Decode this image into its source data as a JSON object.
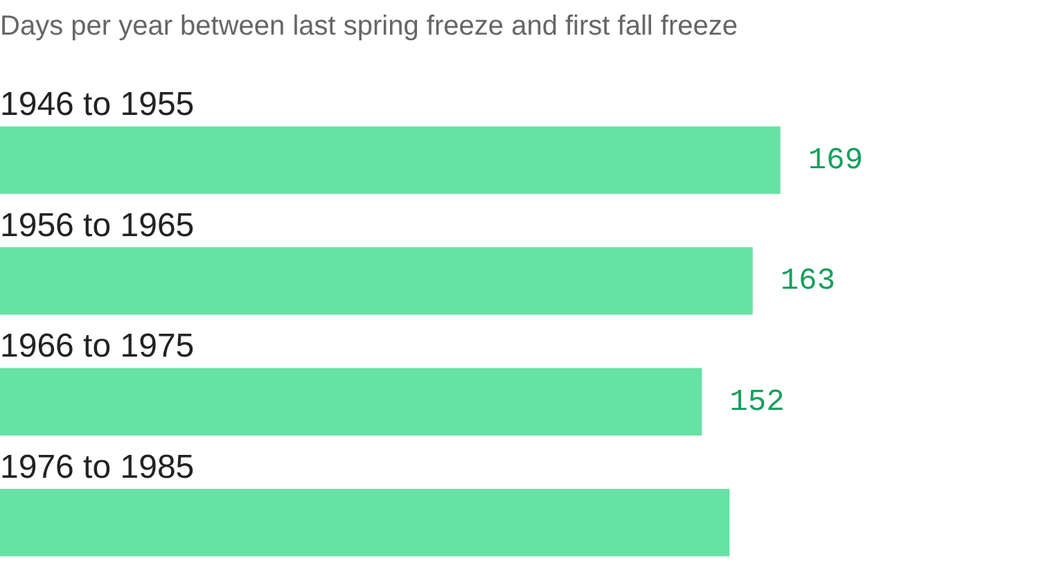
{
  "chart_data": {
    "type": "bar",
    "orientation": "horizontal",
    "title": "Days per year between last spring freeze and first fall freeze",
    "categories": [
      "1946 to 1955",
      "1956 to 1965",
      "1966 to 1975",
      "1976 to 1985"
    ],
    "values": [
      169,
      163,
      152,
      158
    ],
    "value_labels": [
      "169",
      "163",
      "152",
      null
    ],
    "color": "#67e2a5"
  }
}
